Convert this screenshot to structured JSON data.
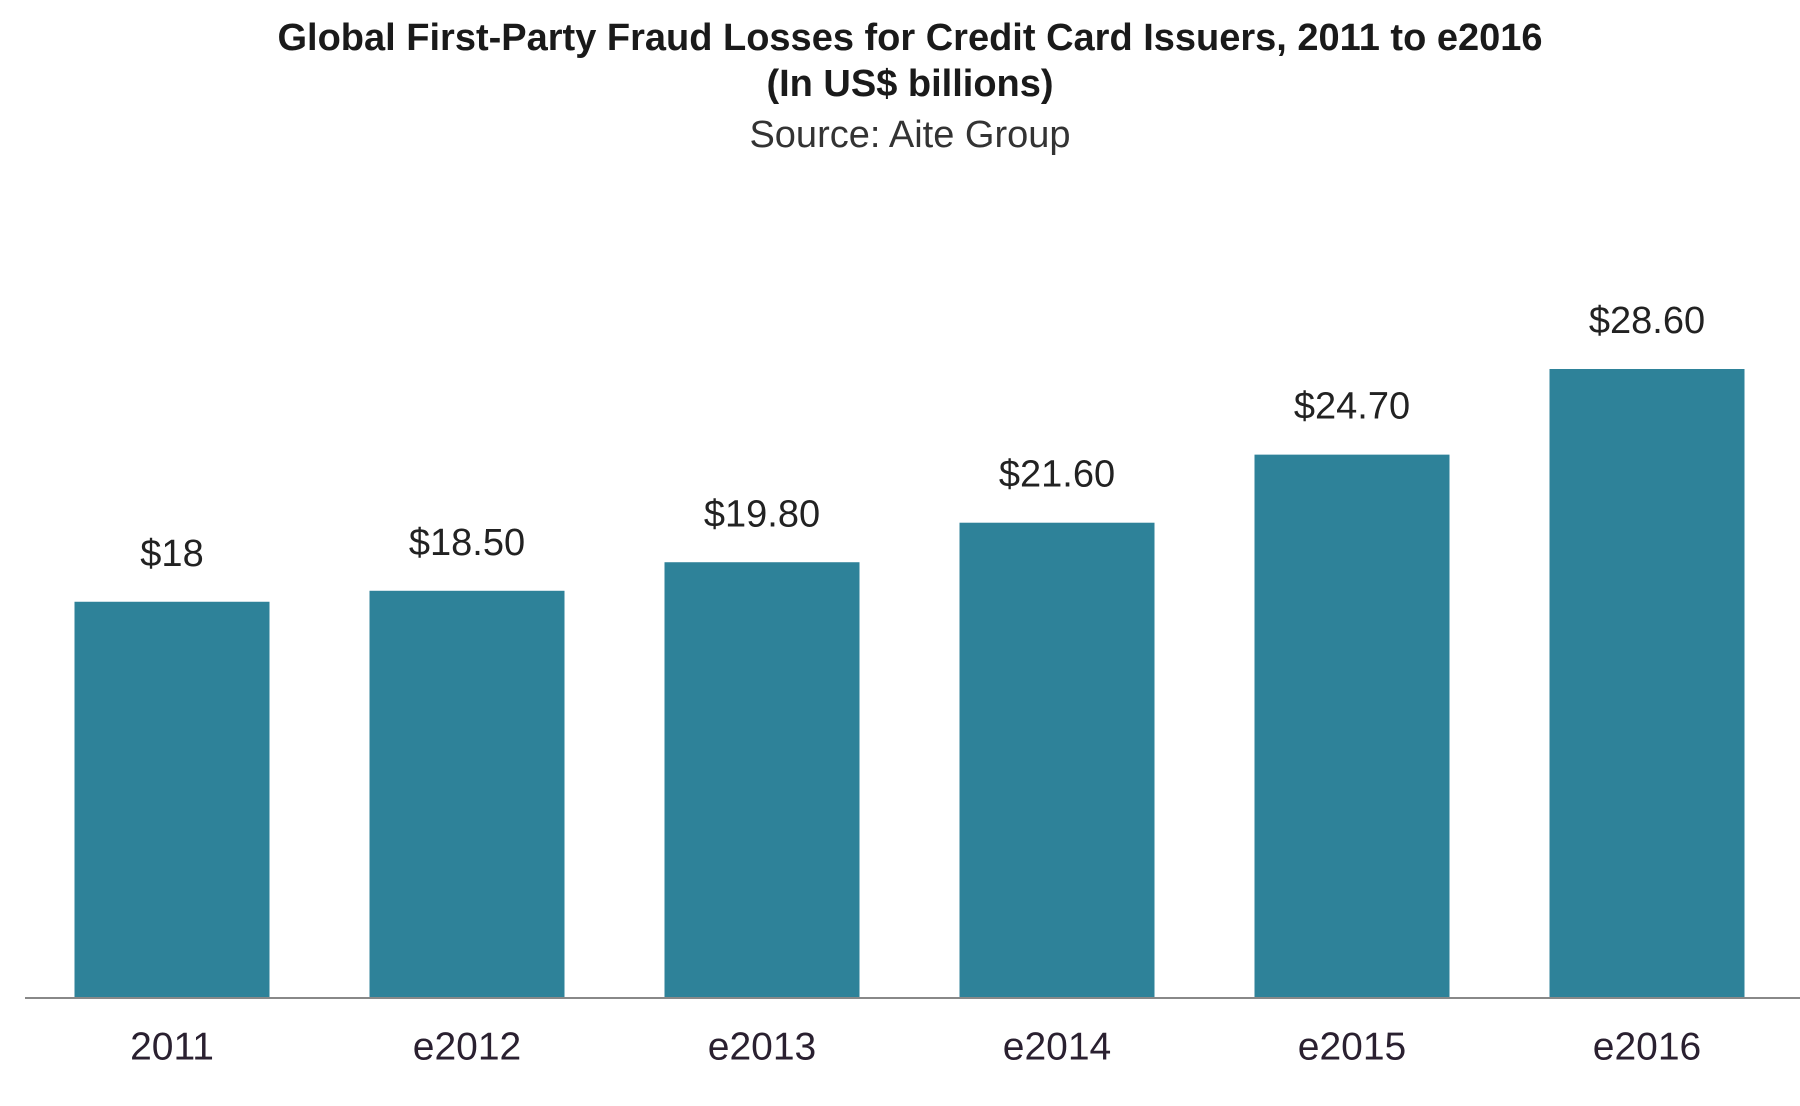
{
  "chart_data": {
    "type": "bar",
    "title": "Global First-Party Fraud Losses for Credit Card Issuers, 2011 to e2016",
    "subtitle": "(In US$ billions)",
    "source": "Source: Aite Group",
    "categories": [
      "2011",
      "e2012",
      "e2013",
      "e2014",
      "e2015",
      "e2016"
    ],
    "values": [
      18,
      18.5,
      19.8,
      21.6,
      24.7,
      28.6
    ],
    "value_labels": [
      "$18",
      "$18.50",
      "$19.80",
      "$21.60",
      "$24.70",
      "$28.60"
    ],
    "color": "#2e8299"
  }
}
